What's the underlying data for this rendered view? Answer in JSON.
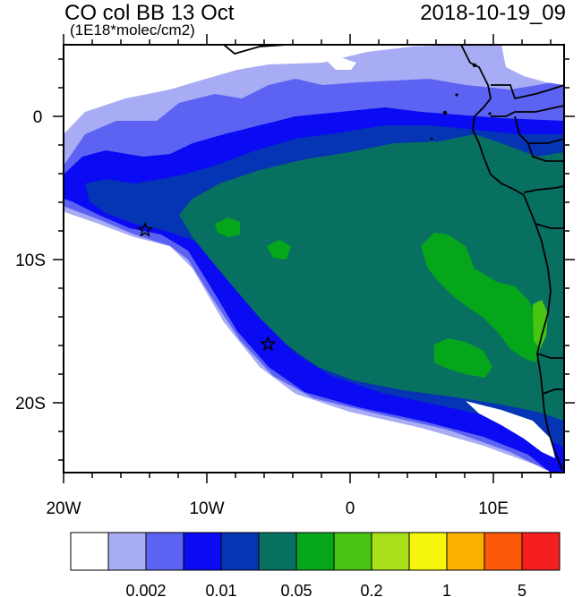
{
  "header": {
    "title": "CO col BB 13 Oct",
    "units": "(1E18*molec/cm2)",
    "datetime": "2018-10-19_09"
  },
  "axes": {
    "lat_labels": [
      "0",
      "10S",
      "20S"
    ],
    "lon_labels": [
      "20W",
      "10W",
      "0",
      "10E"
    ]
  },
  "colorbar": {
    "colors": [
      "#ffffff",
      "#a8acf4",
      "#5c62f2",
      "#0a0bf2",
      "#0534b4",
      "#087060",
      "#06a61a",
      "#48c412",
      "#a8e01c",
      "#f6f60c",
      "#fbb000",
      "#fc5a08",
      "#f51f1f"
    ],
    "labels": [
      "0.002",
      "0.01",
      "0.05",
      "0.2",
      "1",
      "5"
    ]
  },
  "markers": [
    {
      "name": "star-site-1",
      "lon": -14.3,
      "lat": -8.0
    },
    {
      "name": "star-site-2",
      "lon": -5.7,
      "lat": -16.0
    }
  ],
  "map_extent": {
    "lon": [
      -20,
      15
    ],
    "lat": [
      -25,
      5
    ]
  }
}
